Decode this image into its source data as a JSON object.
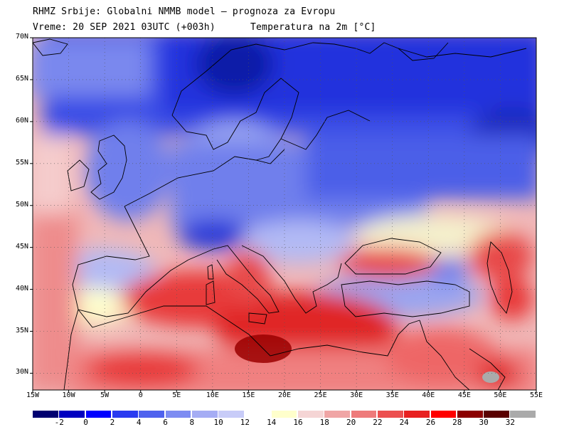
{
  "header": {
    "line1": "RHMZ Srbije: Globalni NMMB model — prognoza za Evropu",
    "line2": "Vreme: 20 SEP 2021 03UTC (+003h)",
    "line3": "Temperatura na 2m [°C]"
  },
  "map": {
    "lon_range": [
      -15,
      55
    ],
    "lat_range": [
      28,
      70
    ],
    "lat_ticks": [
      "30N",
      "35N",
      "40N",
      "45N",
      "50N",
      "55N",
      "60N",
      "65N",
      "70N"
    ],
    "lon_ticks": [
      "15W",
      "10W",
      "5W",
      "0",
      "5E",
      "10E",
      "15E",
      "20E",
      "25E",
      "30E",
      "35E",
      "40E",
      "45E",
      "50E",
      "55E"
    ],
    "grid": true,
    "field_description_colors": {
      "north_scandinavia": "#2233cc",
      "central_europe": "#7f8ff0",
      "atlantic": "#f3b0b0",
      "mediterranean": "#e83a3a",
      "sahara": "#f57c7c",
      "libya_coast": "#8b0000"
    }
  },
  "colorbar": {
    "labels": [
      "-2",
      "0",
      "2",
      "4",
      "6",
      "8",
      "10",
      "12",
      "14",
      "16",
      "18",
      "20",
      "22",
      "24",
      "26",
      "28",
      "30",
      "32"
    ],
    "colors": [
      "#000070",
      "#0000c0",
      "#0000ff",
      "#2a3bf0",
      "#4f62ee",
      "#7d8cf2",
      "#a5adf4",
      "#c8ccf8",
      "#ffffff",
      "#ffffcc",
      "#f5d5d5",
      "#f0a5a5",
      "#ee7b7b",
      "#ec5050",
      "#e82020",
      "#ff0000",
      "#8b0000",
      "#5a0000",
      "#aaaaaa"
    ]
  }
}
